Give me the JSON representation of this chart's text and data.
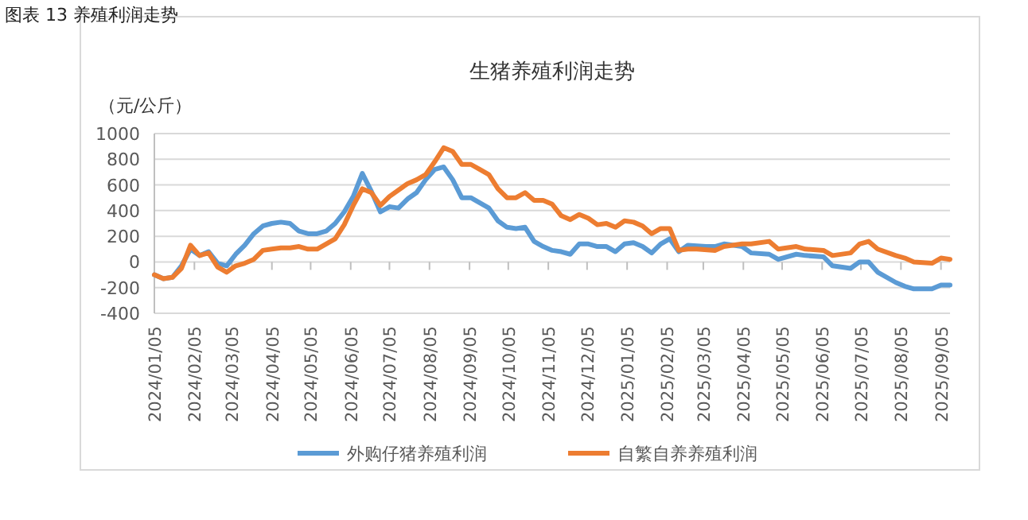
{
  "chart_data": {
    "type": "line",
    "title": "生猪养殖利润走势",
    "ylabel": "（元/公斤）",
    "annotations": [
      "图表 13 养殖利润走势"
    ],
    "xlim": [
      "2024-01-05",
      "2025-09-12"
    ],
    "xticks": [
      {
        "value": "2024-01-05",
        "label": "2024/01/05"
      },
      {
        "value": "2024-02-05",
        "label": "2024/02/05"
      },
      {
        "value": "2024-03-05",
        "label": "2024/03/05"
      },
      {
        "value": "2024-04-05",
        "label": "2024/04/05"
      },
      {
        "value": "2024-05-05",
        "label": "2024/05/05"
      },
      {
        "value": "2024-06-05",
        "label": "2024/06/05"
      },
      {
        "value": "2024-07-05",
        "label": "2024/07/05"
      },
      {
        "value": "2024-08-05",
        "label": "2024/08/05"
      },
      {
        "value": "2024-09-05",
        "label": "2024/09/05"
      },
      {
        "value": "2024-10-05",
        "label": "2024/10/05"
      },
      {
        "value": "2024-11-05",
        "label": "2024/11/05"
      },
      {
        "value": "2024-12-05",
        "label": "2024/12/05"
      },
      {
        "value": "2025-01-05",
        "label": "2025/01/05"
      },
      {
        "value": "2025-02-05",
        "label": "2025/02/05"
      },
      {
        "value": "2025-03-05",
        "label": "2025/03/05"
      },
      {
        "value": "2025-04-05",
        "label": "2025/04/05"
      },
      {
        "value": "2025-05-05",
        "label": "2025/05/05"
      },
      {
        "value": "2025-06-05",
        "label": "2025/06/05"
      },
      {
        "value": "2025-07-05",
        "label": "2025/07/05"
      },
      {
        "value": "2025-08-05",
        "label": "2025/08/05"
      },
      {
        "value": "2025-09-05",
        "label": "2025/09/05"
      }
    ],
    "ylim": [
      -400,
      1000
    ],
    "yticks": [
      -400,
      -200,
      0,
      200,
      400,
      600,
      800,
      1000
    ],
    "grid": "y",
    "legend": "bottom",
    "series": [
      {
        "name": "外购仔猪养殖利润",
        "color": "#5b9bd5",
        "x": [
          "2024-01-05",
          "2024-01-12",
          "2024-01-19",
          "2024-01-26",
          "2024-02-02",
          "2024-02-09",
          "2024-02-16",
          "2024-02-23",
          "2024-03-01",
          "2024-03-08",
          "2024-03-15",
          "2024-03-22",
          "2024-03-29",
          "2024-04-05",
          "2024-04-12",
          "2024-04-19",
          "2024-04-26",
          "2024-05-03",
          "2024-05-10",
          "2024-05-17",
          "2024-05-24",
          "2024-05-31",
          "2024-06-07",
          "2024-06-14",
          "2024-06-21",
          "2024-06-28",
          "2024-07-05",
          "2024-07-12",
          "2024-07-19",
          "2024-07-26",
          "2024-08-02",
          "2024-08-09",
          "2024-08-16",
          "2024-08-23",
          "2024-08-30",
          "2024-09-06",
          "2024-09-13",
          "2024-09-20",
          "2024-09-27",
          "2024-10-04",
          "2024-10-11",
          "2024-10-18",
          "2024-10-25",
          "2024-11-01",
          "2024-11-08",
          "2024-11-15",
          "2024-11-22",
          "2024-11-29",
          "2024-12-06",
          "2024-12-13",
          "2024-12-20",
          "2024-12-27",
          "2025-01-03",
          "2025-01-10",
          "2025-01-17",
          "2025-01-24",
          "2025-01-31",
          "2025-02-07",
          "2025-02-14",
          "2025-02-21",
          "2025-03-07",
          "2025-03-14",
          "2025-03-21",
          "2025-04-04",
          "2025-04-11",
          "2025-04-25",
          "2025-05-02",
          "2025-05-16",
          "2025-05-23",
          "2025-06-06",
          "2025-06-13",
          "2025-06-27",
          "2025-07-04",
          "2025-07-11",
          "2025-07-18",
          "2025-08-01",
          "2025-08-08",
          "2025-08-15",
          "2025-08-29",
          "2025-09-05",
          "2025-09-12"
        ],
        "values": [
          -100,
          -130,
          -120,
          -30,
          100,
          50,
          80,
          -10,
          -30,
          60,
          130,
          220,
          280,
          300,
          310,
          300,
          240,
          220,
          220,
          240,
          300,
          390,
          510,
          690,
          550,
          390,
          430,
          420,
          490,
          540,
          640,
          720,
          740,
          640,
          500,
          500,
          460,
          420,
          320,
          270,
          260,
          270,
          160,
          120,
          90,
          80,
          60,
          140,
          140,
          120,
          120,
          80,
          140,
          150,
          120,
          70,
          140,
          180,
          80,
          130,
          120,
          120,
          140,
          120,
          70,
          60,
          20,
          60,
          50,
          40,
          -30,
          -50,
          0,
          0,
          -80,
          -160,
          -190,
          -210,
          -210,
          -180,
          -180
        ]
      },
      {
        "name": "自繁自养养殖利润",
        "color": "#ed7d31",
        "x": [
          "2024-01-05",
          "2024-01-12",
          "2024-01-19",
          "2024-01-26",
          "2024-02-02",
          "2024-02-09",
          "2024-02-16",
          "2024-02-23",
          "2024-03-01",
          "2024-03-08",
          "2024-03-15",
          "2024-03-22",
          "2024-03-29",
          "2024-04-05",
          "2024-04-12",
          "2024-04-19",
          "2024-04-26",
          "2024-05-03",
          "2024-05-10",
          "2024-05-17",
          "2024-05-24",
          "2024-05-31",
          "2024-06-07",
          "2024-06-14",
          "2024-06-21",
          "2024-06-28",
          "2024-07-05",
          "2024-07-19",
          "2024-07-26",
          "2024-08-02",
          "2024-08-09",
          "2024-08-16",
          "2024-08-23",
          "2024-08-30",
          "2024-09-06",
          "2024-09-13",
          "2024-09-20",
          "2024-09-27",
          "2024-10-04",
          "2024-10-11",
          "2024-10-18",
          "2024-10-25",
          "2024-11-01",
          "2024-11-08",
          "2024-11-15",
          "2024-11-22",
          "2024-11-29",
          "2024-12-06",
          "2024-12-13",
          "2024-12-20",
          "2024-12-27",
          "2025-01-03",
          "2025-01-10",
          "2025-01-17",
          "2025-01-24",
          "2025-01-31",
          "2025-02-07",
          "2025-02-14",
          "2025-02-21",
          "2025-02-28",
          "2025-03-14",
          "2025-03-21",
          "2025-04-04",
          "2025-04-11",
          "2025-04-25",
          "2025-05-02",
          "2025-05-16",
          "2025-05-23",
          "2025-06-06",
          "2025-06-13",
          "2025-06-27",
          "2025-07-04",
          "2025-07-11",
          "2025-07-18",
          "2025-08-01",
          "2025-08-08",
          "2025-08-15",
          "2025-08-29",
          "2025-09-05",
          "2025-09-12"
        ],
        "values": [
          -100,
          -130,
          -120,
          -50,
          130,
          50,
          70,
          -40,
          -80,
          -30,
          -10,
          20,
          90,
          100,
          110,
          110,
          120,
          100,
          100,
          140,
          180,
          290,
          440,
          570,
          540,
          440,
          510,
          610,
          640,
          680,
          780,
          890,
          860,
          760,
          760,
          720,
          680,
          570,
          500,
          500,
          540,
          480,
          480,
          450,
          360,
          330,
          370,
          340,
          290,
          300,
          270,
          320,
          310,
          280,
          220,
          260,
          260,
          90,
          100,
          100,
          90,
          120,
          140,
          140,
          160,
          100,
          120,
          100,
          90,
          50,
          70,
          140,
          160,
          100,
          50,
          30,
          0,
          -10,
          30,
          20
        ]
      }
    ]
  }
}
